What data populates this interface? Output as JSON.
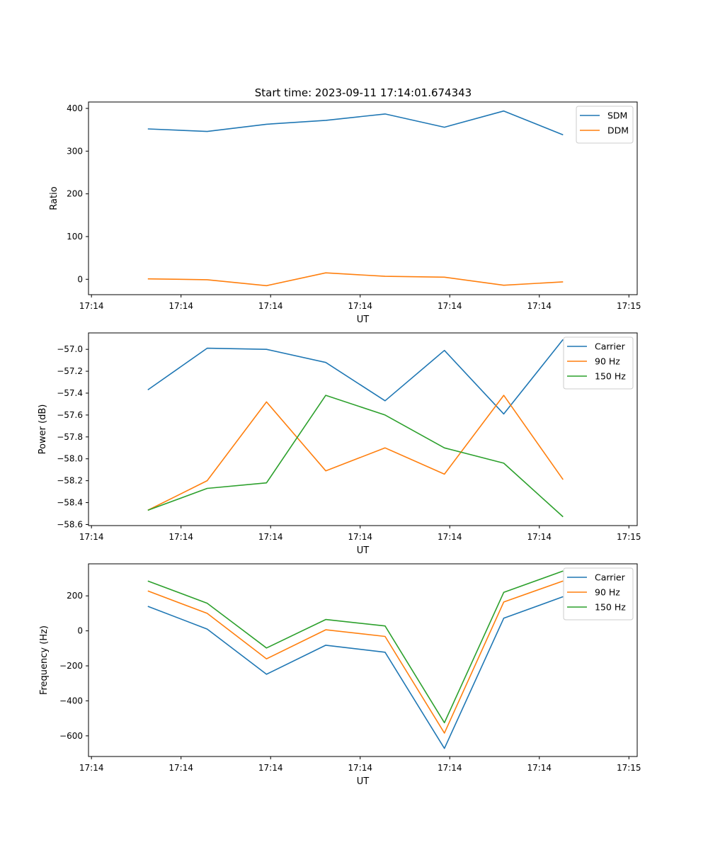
{
  "figure_title": "Start time: 2023-09-11 17:14:01.674343",
  "colors": {
    "blue": "#1f77b4",
    "orange": "#ff7f0e",
    "green": "#2ca02c"
  },
  "chart_data": [
    {
      "type": "line",
      "title": "Start time: 2023-09-11 17:14:01.674343",
      "xlabel": "UT",
      "ylabel": "Ratio",
      "x": [
        1,
        2,
        3,
        4,
        5,
        6,
        7,
        8
      ],
      "xlim": [
        0,
        9.25
      ],
      "xticks": [
        0.05,
        1.56,
        3.07,
        4.58,
        6.09,
        7.6,
        9.11
      ],
      "xtick_labels": [
        "17:14",
        "17:14",
        "17:14",
        "17:14",
        "17:14",
        "17:14",
        "17:15"
      ],
      "ylim": [
        -36,
        415
      ],
      "yticks": [
        0,
        100,
        200,
        300,
        400
      ],
      "ytick_labels": [
        "0",
        "100",
        "200",
        "300",
        "400"
      ],
      "legend_position": "top-right",
      "series": [
        {
          "name": "SDM",
          "color": "#1f77b4",
          "values": [
            352,
            346,
            363,
            372,
            387,
            356,
            394,
            338
          ]
        },
        {
          "name": "DDM",
          "color": "#ff7f0e",
          "values": [
            1,
            -1,
            -15,
            15,
            7,
            5,
            -14,
            -6
          ]
        }
      ]
    },
    {
      "type": "line",
      "xlabel": "UT",
      "ylabel": "Power (dB)",
      "x": [
        1,
        2,
        3,
        4,
        5,
        6,
        7,
        8
      ],
      "xlim": [
        0,
        9.25
      ],
      "xticks": [
        0.05,
        1.56,
        3.07,
        4.58,
        6.09,
        7.6,
        9.11
      ],
      "xtick_labels": [
        "17:14",
        "17:14",
        "17:14",
        "17:14",
        "17:14",
        "17:14",
        "17:15"
      ],
      "ylim": [
        -58.61,
        -56.85
      ],
      "yticks": [
        -58.6,
        -58.4,
        -58.2,
        -58.0,
        -57.8,
        -57.6,
        -57.4,
        -57.2,
        -57.0
      ],
      "ytick_labels": [
        "−58.6",
        "−58.4",
        "−58.2",
        "−58.0",
        "−57.8",
        "−57.6",
        "−57.4",
        "−57.2",
        "−57.0"
      ],
      "legend_position": "top-right",
      "series": [
        {
          "name": "Carrier",
          "color": "#1f77b4",
          "values": [
            -57.37,
            -56.99,
            -57.0,
            -57.12,
            -57.47,
            -57.01,
            -57.59,
            -56.91
          ]
        },
        {
          "name": "90 Hz",
          "color": "#ff7f0e",
          "values": [
            -58.47,
            -58.2,
            -57.48,
            -58.11,
            -57.9,
            -58.14,
            -57.42,
            -58.19
          ]
        },
        {
          "name": "150 Hz",
          "color": "#2ca02c",
          "values": [
            -58.47,
            -58.27,
            -58.22,
            -57.42,
            -57.6,
            -57.9,
            -58.04,
            -58.53
          ]
        }
      ]
    },
    {
      "type": "line",
      "xlabel": "UT",
      "ylabel": "Frequency (Hz)",
      "x": [
        1,
        2,
        3,
        4,
        5,
        6,
        7,
        8
      ],
      "xlim": [
        0,
        9.25
      ],
      "xticks": [
        0.05,
        1.56,
        3.07,
        4.58,
        6.09,
        7.6,
        9.11
      ],
      "xtick_labels": [
        "17:14",
        "17:14",
        "17:14",
        "17:14",
        "17:14",
        "17:14",
        "17:15"
      ],
      "ylim": [
        -718,
        383
      ],
      "yticks": [
        -600,
        -400,
        -200,
        0,
        200
      ],
      "ytick_labels": [
        "−600",
        "−400",
        "−200",
        "0",
        "200"
      ],
      "legend_position": "top-right",
      "series": [
        {
          "name": "Carrier",
          "color": "#1f77b4",
          "values": [
            140,
            10,
            -248,
            -82,
            -122,
            -672,
            72,
            195
          ]
        },
        {
          "name": "90 Hz",
          "color": "#ff7f0e",
          "values": [
            228,
            100,
            -160,
            6,
            -32,
            -584,
            165,
            285
          ]
        },
        {
          "name": "150 Hz",
          "color": "#2ca02c",
          "values": [
            285,
            158,
            -98,
            65,
            28,
            -525,
            220,
            342
          ]
        }
      ]
    }
  ]
}
